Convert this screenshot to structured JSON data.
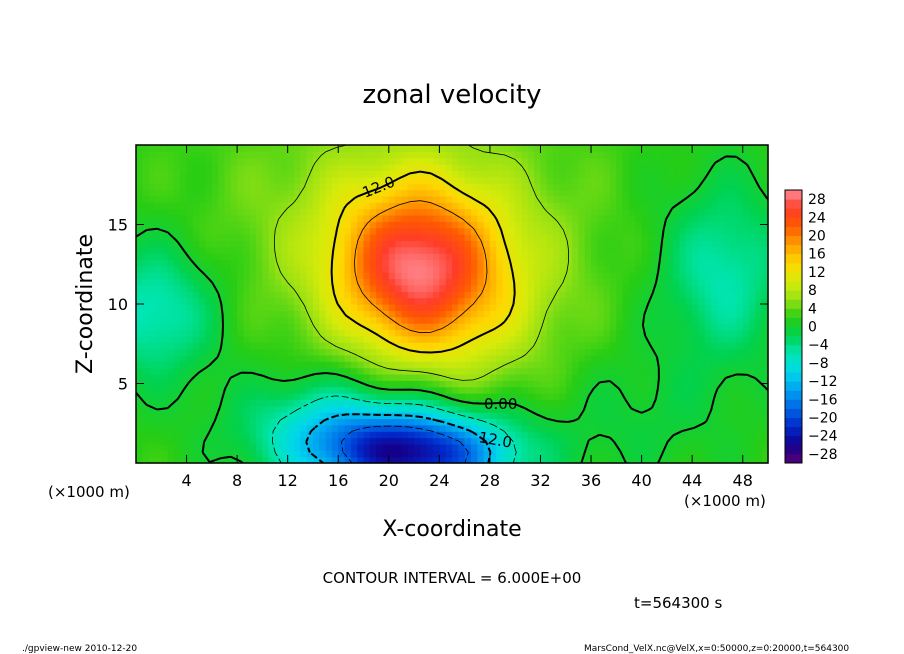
{
  "chart_data": {
    "type": "heatmap",
    "title": "zonal velocity",
    "xlabel": "X-coordinate",
    "ylabel": "Z-coordinate",
    "x_unit_left": "(×1000 m)",
    "x_unit_right": "(×1000 m)",
    "xlim": [
      0,
      50
    ],
    "ylim": [
      0,
      20
    ],
    "x_ticks": [
      4,
      8,
      12,
      16,
      20,
      24,
      28,
      32,
      36,
      40,
      44,
      48
    ],
    "y_ticks": [
      5,
      10,
      15
    ],
    "contour_interval_text": "CONTOUR INTERVAL = 6.000E+00",
    "contour_labels": [
      "12.0",
      "0.00",
      "12.0"
    ],
    "time_text": "t=564300 s",
    "colorbar": {
      "levels": [
        28,
        24,
        20,
        16,
        12,
        8,
        4,
        0,
        -4,
        -8,
        -12,
        -16,
        -20,
        -24,
        -28
      ],
      "range": [
        -30,
        30
      ]
    },
    "features": [
      {
        "kind": "max",
        "x": 22,
        "z": 12.2,
        "value": 22
      },
      {
        "kind": "min",
        "x": 22,
        "z": 1.0,
        "value": -24
      },
      {
        "kind": "min",
        "x": 2,
        "z": 9.5,
        "value": -10
      },
      {
        "kind": "min",
        "x": 46,
        "z": 12.0,
        "value": -8
      }
    ]
  },
  "footer": {
    "left": "./gpview-new   2010-12-20",
    "right": "MarsCond_VelX.nc@VelX,x=0:50000,z=0:20000,t=564300"
  }
}
